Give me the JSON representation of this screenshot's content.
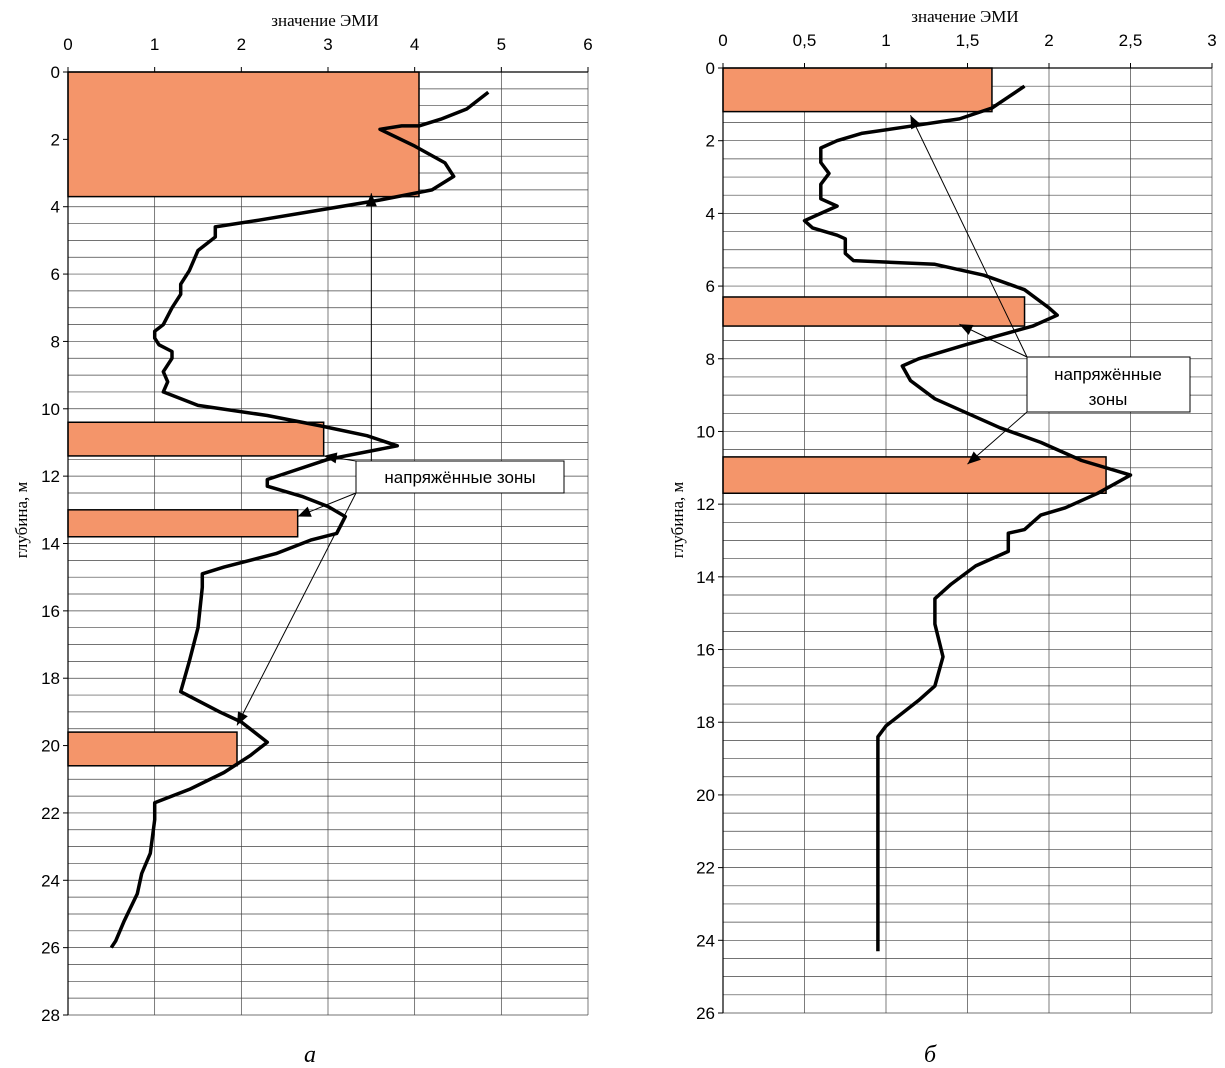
{
  "chart_data": [
    {
      "id": "a",
      "type": "line",
      "caption": "а",
      "xlabel": "значение ЭМИ",
      "ylabel": "глубина, м",
      "xlim": [
        0,
        6
      ],
      "ylim": [
        0,
        28
      ],
      "x_orientation": "top",
      "y_inverted": true,
      "grid": true,
      "x_ticks": [
        0,
        1,
        2,
        3,
        4,
        5,
        6
      ],
      "x_tick_labels": [
        "0",
        "1",
        "2",
        "3",
        "4",
        "5",
        "6"
      ],
      "y_ticks": [
        0,
        2,
        4,
        6,
        8,
        10,
        12,
        14,
        16,
        18,
        20,
        22,
        24,
        26,
        28
      ],
      "y_tick_labels": [
        "0",
        "2",
        "4",
        "6",
        "8",
        "10",
        "12",
        "14",
        "16",
        "18",
        "20",
        "22",
        "24",
        "26",
        "28"
      ],
      "series": [
        {
          "points": [
            [
              4.85,
              0.6
            ],
            [
              4.6,
              1.1
            ],
            [
              4.3,
              1.4
            ],
            [
              4.05,
              1.6
            ],
            [
              3.85,
              1.6
            ],
            [
              3.6,
              1.7
            ],
            [
              4.0,
              2.2
            ],
            [
              4.35,
              2.7
            ],
            [
              4.45,
              3.1
            ],
            [
              4.2,
              3.5
            ],
            [
              3.6,
              3.8
            ],
            [
              2.9,
              4.1
            ],
            [
              2.2,
              4.4
            ],
            [
              1.7,
              4.6
            ],
            [
              1.7,
              4.9
            ],
            [
              1.5,
              5.3
            ],
            [
              1.4,
              5.9
            ],
            [
              1.3,
              6.3
            ],
            [
              1.3,
              6.6
            ],
            [
              1.2,
              7.0
            ],
            [
              1.1,
              7.5
            ],
            [
              1.0,
              7.7
            ],
            [
              1.0,
              7.9
            ],
            [
              1.05,
              8.1
            ],
            [
              1.2,
              8.3
            ],
            [
              1.2,
              8.5
            ],
            [
              1.1,
              8.9
            ],
            [
              1.15,
              9.2
            ],
            [
              1.1,
              9.5
            ],
            [
              1.5,
              9.9
            ],
            [
              2.3,
              10.2
            ],
            [
              2.9,
              10.5
            ],
            [
              3.45,
              10.8
            ],
            [
              3.8,
              11.1
            ],
            [
              3.0,
              11.5
            ],
            [
              2.65,
              11.8
            ],
            [
              2.3,
              12.1
            ],
            [
              2.3,
              12.3
            ],
            [
              2.7,
              12.6
            ],
            [
              3.0,
              12.9
            ],
            [
              3.2,
              13.2
            ],
            [
              3.1,
              13.7
            ],
            [
              2.8,
              13.9
            ],
            [
              2.4,
              14.3
            ],
            [
              1.8,
              14.7
            ],
            [
              1.55,
              14.9
            ],
            [
              1.55,
              15.3
            ],
            [
              1.5,
              16.5
            ],
            [
              1.4,
              17.5
            ],
            [
              1.3,
              18.4
            ],
            [
              1.75,
              19.0
            ],
            [
              2.0,
              19.3
            ],
            [
              2.3,
              19.9
            ],
            [
              2.1,
              20.3
            ],
            [
              1.8,
              20.8
            ],
            [
              1.4,
              21.3
            ],
            [
              1.0,
              21.7
            ],
            [
              1.0,
              22.2
            ],
            [
              0.95,
              23.2
            ],
            [
              0.85,
              23.8
            ],
            [
              0.8,
              24.4
            ],
            [
              0.65,
              25.2
            ],
            [
              0.55,
              25.8
            ],
            [
              0.5,
              26.0
            ]
          ]
        }
      ],
      "zones": [
        {
          "depth_from": 0.0,
          "depth_to": 3.7,
          "value": 4.05
        },
        {
          "depth_from": 10.4,
          "depth_to": 11.4,
          "value": 2.95
        },
        {
          "depth_from": 13.0,
          "depth_to": 13.8,
          "value": 2.65
        },
        {
          "depth_from": 19.6,
          "depth_to": 20.6,
          "value": 1.95
        }
      ],
      "annotation": {
        "text": "напряжённые зоны",
        "targets": [
          [
            3.5,
            3.6
          ],
          [
            2.95,
            11.4
          ],
          [
            2.65,
            13.2
          ],
          [
            1.95,
            19.4
          ]
        ]
      }
    },
    {
      "id": "b",
      "type": "line",
      "caption": "б",
      "xlabel": "значение ЭМИ",
      "ylabel": "глубина, м",
      "xlim": [
        0,
        3
      ],
      "ylim": [
        0,
        26
      ],
      "x_orientation": "top",
      "y_inverted": true,
      "grid": true,
      "x_ticks": [
        0,
        0.5,
        1,
        1.5,
        2,
        2.5,
        3
      ],
      "x_tick_labels": [
        "0",
        "0,5",
        "1",
        "1,5",
        "2",
        "2,5",
        "3"
      ],
      "y_ticks": [
        0,
        2,
        4,
        6,
        8,
        10,
        12,
        14,
        16,
        18,
        20,
        22,
        24,
        26
      ],
      "y_tick_labels": [
        "0",
        "2",
        "4",
        "6",
        "8",
        "10",
        "12",
        "14",
        "16",
        "18",
        "20",
        "22",
        "24",
        "26"
      ],
      "series": [
        {
          "points": [
            [
              1.85,
              0.5
            ],
            [
              1.75,
              0.8
            ],
            [
              1.65,
              1.1
            ],
            [
              1.45,
              1.4
            ],
            [
              1.15,
              1.6
            ],
            [
              0.85,
              1.8
            ],
            [
              0.7,
              2.0
            ],
            [
              0.6,
              2.2
            ],
            [
              0.6,
              2.6
            ],
            [
              0.65,
              2.9
            ],
            [
              0.6,
              3.2
            ],
            [
              0.6,
              3.6
            ],
            [
              0.7,
              3.8
            ],
            [
              0.6,
              4.0
            ],
            [
              0.5,
              4.2
            ],
            [
              0.55,
              4.4
            ],
            [
              0.7,
              4.6
            ],
            [
              0.75,
              4.7
            ],
            [
              0.75,
              5.1
            ],
            [
              0.8,
              5.3
            ],
            [
              1.3,
              5.4
            ],
            [
              1.6,
              5.7
            ],
            [
              1.85,
              6.1
            ],
            [
              2.0,
              6.6
            ],
            [
              2.05,
              6.8
            ],
            [
              1.9,
              7.1
            ],
            [
              1.5,
              7.6
            ],
            [
              1.2,
              8.0
            ],
            [
              1.1,
              8.2
            ],
            [
              1.15,
              8.6
            ],
            [
              1.3,
              9.1
            ],
            [
              1.5,
              9.5
            ],
            [
              1.7,
              9.9
            ],
            [
              1.95,
              10.3
            ],
            [
              2.2,
              10.8
            ],
            [
              2.5,
              11.2
            ],
            [
              2.3,
              11.7
            ],
            [
              2.1,
              12.1
            ],
            [
              1.95,
              12.3
            ],
            [
              1.85,
              12.7
            ],
            [
              1.75,
              12.8
            ],
            [
              1.75,
              13.3
            ],
            [
              1.55,
              13.7
            ],
            [
              1.4,
              14.2
            ],
            [
              1.3,
              14.6
            ],
            [
              1.3,
              15.3
            ],
            [
              1.35,
              16.2
            ],
            [
              1.3,
              17.0
            ],
            [
              1.2,
              17.4
            ],
            [
              1.0,
              18.1
            ],
            [
              0.95,
              18.4
            ],
            [
              0.95,
              19.6
            ],
            [
              0.95,
              21.0
            ],
            [
              0.95,
              22.5
            ],
            [
              0.95,
              24.3
            ]
          ]
        }
      ],
      "zones": [
        {
          "depth_from": 0.0,
          "depth_to": 1.2,
          "value": 1.65
        },
        {
          "depth_from": 6.3,
          "depth_to": 7.1,
          "value": 1.85
        },
        {
          "depth_from": 10.7,
          "depth_to": 11.7,
          "value": 2.35
        }
      ],
      "annotation": {
        "text": [
          "напряжённые",
          "зоны"
        ],
        "targets": [
          [
            1.15,
            1.3
          ],
          [
            1.45,
            7.05
          ],
          [
            1.5,
            10.9
          ]
        ]
      }
    }
  ]
}
